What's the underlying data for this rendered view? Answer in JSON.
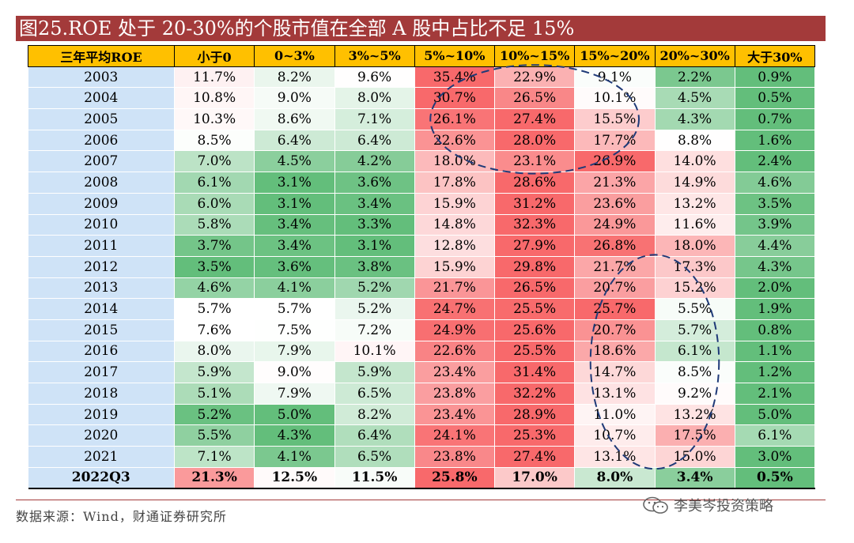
{
  "title": "图25.ROE 处于 20-30%的个股市值在全部 A 股中占比不足 15%",
  "source": "数据来源：Wind，财通证券研究所",
  "watermark": "李美岑投资策略",
  "chart_data": {
    "type": "table",
    "row_header_label": "三年平均ROE",
    "columns": [
      "小于0",
      "0~3%",
      "3%~5%",
      "5%~10%",
      "10%~15%",
      "15%~20%",
      "20%~30%",
      "大于30%"
    ],
    "rows": [
      {
        "label": "2003",
        "values": [
          "11.7%",
          "8.2%",
          "9.6%",
          "35.4%",
          "22.9%",
          "9.1%",
          "2.2%",
          "0.9%"
        ]
      },
      {
        "label": "2004",
        "values": [
          "10.8%",
          "9.0%",
          "8.0%",
          "30.7%",
          "26.5%",
          "10.1%",
          "4.5%",
          "0.5%"
        ]
      },
      {
        "label": "2005",
        "values": [
          "10.3%",
          "8.6%",
          "7.1%",
          "26.1%",
          "27.4%",
          "15.5%",
          "4.3%",
          "0.7%"
        ]
      },
      {
        "label": "2006",
        "values": [
          "8.5%",
          "6.4%",
          "6.4%",
          "22.6%",
          "28.0%",
          "17.7%",
          "8.8%",
          "1.6%"
        ]
      },
      {
        "label": "2007",
        "values": [
          "7.0%",
          "4.5%",
          "4.2%",
          "18.0%",
          "23.1%",
          "26.9%",
          "14.0%",
          "2.4%"
        ]
      },
      {
        "label": "2008",
        "values": [
          "6.1%",
          "3.1%",
          "3.6%",
          "17.8%",
          "28.6%",
          "21.3%",
          "14.9%",
          "4.6%"
        ]
      },
      {
        "label": "2009",
        "values": [
          "6.0%",
          "3.1%",
          "3.4%",
          "15.9%",
          "31.2%",
          "23.6%",
          "13.2%",
          "3.5%"
        ]
      },
      {
        "label": "2010",
        "values": [
          "5.8%",
          "3.4%",
          "3.3%",
          "14.8%",
          "32.3%",
          "24.9%",
          "11.6%",
          "3.9%"
        ]
      },
      {
        "label": "2011",
        "values": [
          "3.7%",
          "3.4%",
          "3.1%",
          "12.8%",
          "27.9%",
          "26.8%",
          "18.0%",
          "4.4%"
        ]
      },
      {
        "label": "2012",
        "values": [
          "3.5%",
          "3.6%",
          "3.8%",
          "15.9%",
          "29.8%",
          "21.7%",
          "17.3%",
          "4.3%"
        ]
      },
      {
        "label": "2013",
        "values": [
          "4.6%",
          "4.1%",
          "5.2%",
          "21.7%",
          "26.5%",
          "20.7%",
          "15.2%",
          "2.0%"
        ]
      },
      {
        "label": "2014",
        "values": [
          "5.7%",
          "5.7%",
          "5.2%",
          "24.7%",
          "25.5%",
          "25.7%",
          "5.5%",
          "1.9%"
        ]
      },
      {
        "label": "2015",
        "values": [
          "7.6%",
          "7.5%",
          "7.2%",
          "24.9%",
          "25.6%",
          "20.7%",
          "5.7%",
          "0.8%"
        ]
      },
      {
        "label": "2016",
        "values": [
          "8.0%",
          "7.9%",
          "10.1%",
          "22.6%",
          "25.5%",
          "18.6%",
          "6.1%",
          "1.1%"
        ]
      },
      {
        "label": "2017",
        "values": [
          "5.9%",
          "9.0%",
          "5.9%",
          "23.4%",
          "31.4%",
          "14.7%",
          "8.5%",
          "1.2%"
        ]
      },
      {
        "label": "2018",
        "values": [
          "5.1%",
          "7.9%",
          "6.5%",
          "23.8%",
          "32.2%",
          "13.1%",
          "9.2%",
          "2.1%"
        ]
      },
      {
        "label": "2019",
        "values": [
          "5.2%",
          "5.0%",
          "8.2%",
          "23.4%",
          "28.9%",
          "11.0%",
          "13.2%",
          "5.0%"
        ]
      },
      {
        "label": "2020",
        "values": [
          "5.5%",
          "4.3%",
          "6.4%",
          "24.1%",
          "25.3%",
          "10.7%",
          "17.5%",
          "6.1%"
        ]
      },
      {
        "label": "2021",
        "values": [
          "7.1%",
          "4.1%",
          "6.5%",
          "23.8%",
          "27.4%",
          "13.1%",
          "15.0%",
          "3.0%"
        ]
      },
      {
        "label": "2022Q3",
        "values": [
          "21.3%",
          "12.5%",
          "11.5%",
          "25.8%",
          "17.0%",
          "8.0%",
          "3.4%",
          "0.5%"
        ]
      }
    ],
    "color_scale": {
      "low": "#63be7b",
      "mid": "#ffffff",
      "high": "#f8696b"
    },
    "highlights": [
      {
        "rows": [
          "2003",
          "2007"
        ],
        "columns": [
          "5%~10%",
          "15%~20%"
        ],
        "style": "dashed ellipse",
        "color": "#1f3a78"
      },
      {
        "rows": [
          "2012",
          "2021"
        ],
        "columns": [
          "15%~20%",
          "20%~30%"
        ],
        "style": "dashed ellipse",
        "color": "#1f3a78"
      }
    ]
  }
}
